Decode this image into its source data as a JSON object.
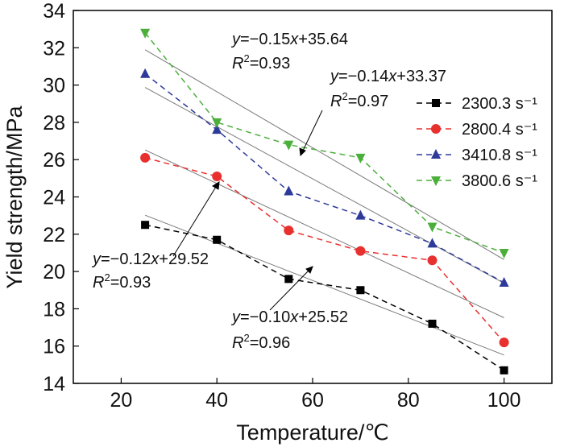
{
  "chart_data": {
    "type": "line",
    "xlabel": "Temperature/℃",
    "ylabel": "Yield strength/MPa",
    "xlim": [
      10,
      110
    ],
    "ylim": [
      14,
      34
    ],
    "xticks": [
      20,
      40,
      60,
      80,
      100
    ],
    "yticks": [
      14,
      16,
      18,
      20,
      22,
      24,
      26,
      28,
      30,
      32,
      34
    ],
    "x": [
      25,
      40,
      55,
      70,
      85,
      100
    ],
    "series": [
      {
        "name": "2300.3 s⁻¹",
        "color": "#000000",
        "marker": "square",
        "values": [
          22.5,
          21.7,
          19.6,
          19.0,
          17.2,
          14.7
        ],
        "fit": {
          "slope": -0.1,
          "intercept": 25.52
        }
      },
      {
        "name": "2800.4 s⁻¹",
        "color": "#e8302e",
        "marker": "circle",
        "values": [
          26.1,
          25.1,
          22.2,
          21.1,
          20.6,
          16.2
        ],
        "fit": {
          "slope": -0.12,
          "intercept": 29.52
        }
      },
      {
        "name": "3410.8 s⁻¹",
        "color": "#2e3a9a",
        "marker": "triangle-up",
        "values": [
          30.6,
          27.6,
          24.3,
          23.0,
          21.5,
          19.4
        ],
        "fit": {
          "slope": -0.14,
          "intercept": 33.37
        }
      },
      {
        "name": "3800.6 s⁻¹",
        "color": "#4caf3c",
        "marker": "triangle-down",
        "values": [
          32.8,
          28.0,
          26.8,
          26.1,
          22.4,
          21.0
        ],
        "fit": {
          "slope": -0.15,
          "intercept": 35.64
        }
      }
    ],
    "annotations": [
      {
        "equation": {
          "y": "y",
          "rest": "=−0.15",
          "x": "x",
          "tail": "+35.64"
        },
        "r2": {
          "r": "R",
          "sup": "2",
          "val": "=0.93"
        }
      },
      {
        "equation": {
          "y": "y",
          "rest": "=−0.14",
          "x": "x",
          "tail": "+33.37"
        },
        "r2": {
          "r": "R",
          "sup": "2",
          "val": "=0.97"
        }
      },
      {
        "equation": {
          "y": "y",
          "rest": "=−0.12",
          "x": "x",
          "tail": "+29.52"
        },
        "r2": {
          "r": "R",
          "sup": "2",
          "val": "=0.93"
        }
      },
      {
        "equation": {
          "y": "y",
          "rest": "=−0.10",
          "x": "x",
          "tail": "+25.52"
        },
        "r2": {
          "r": "R",
          "sup": "2",
          "val": "=0.96"
        }
      }
    ],
    "legend_position": "top-right"
  }
}
